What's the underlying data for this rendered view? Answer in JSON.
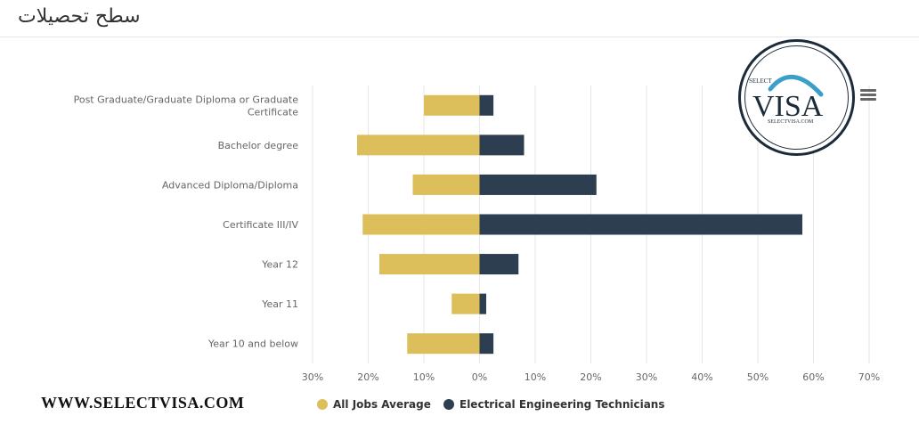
{
  "page": {
    "title": "سطح تحصیلات",
    "watermark": "WWW.SELECTVISA.COM"
  },
  "logo": {
    "select": "SELECT",
    "visa": "VISA",
    "url": "SELECTVISA.COM"
  },
  "colors": {
    "all_jobs": "#dcbf5a",
    "electrical": "#2c3e50",
    "grid": "#e6e6e6",
    "axis_text": "#666666"
  },
  "menu_icon": "hamburger-menu-icon",
  "chart_data": {
    "type": "bar",
    "orientation": "horizontal",
    "categories": [
      "Post Graduate/Graduate Diploma or Graduate Certificate",
      "Bachelor degree",
      "Advanced Diploma/Diploma",
      "Certificate III/IV",
      "Year 12",
      "Year 11",
      "Year 10 and below"
    ],
    "category_lines": [
      [
        "Post Graduate/Graduate Diploma or Graduate",
        "Certificate"
      ],
      [
        "Bachelor degree"
      ],
      [
        "Advanced Diploma/Diploma"
      ],
      [
        "Certificate III/IV"
      ],
      [
        "Year 12"
      ],
      [
        "Year 11"
      ],
      [
        "Year 10 and below"
      ]
    ],
    "series": [
      {
        "name": "All Jobs Average",
        "values": [
          10,
          22,
          12,
          21,
          18,
          5,
          13
        ],
        "direction": "left"
      },
      {
        "name": "Electrical Engineering Technicians",
        "values": [
          2.5,
          8,
          21,
          58,
          7,
          1.2,
          2.5
        ],
        "direction": "right"
      }
    ],
    "x_ticks": [
      "30%",
      "20%",
      "10%",
      "0%",
      "10%",
      "20%",
      "30%",
      "40%",
      "50%",
      "60%",
      "70%"
    ],
    "xlim": [
      -30,
      70
    ],
    "grid": true,
    "legend": "bottom-center"
  }
}
